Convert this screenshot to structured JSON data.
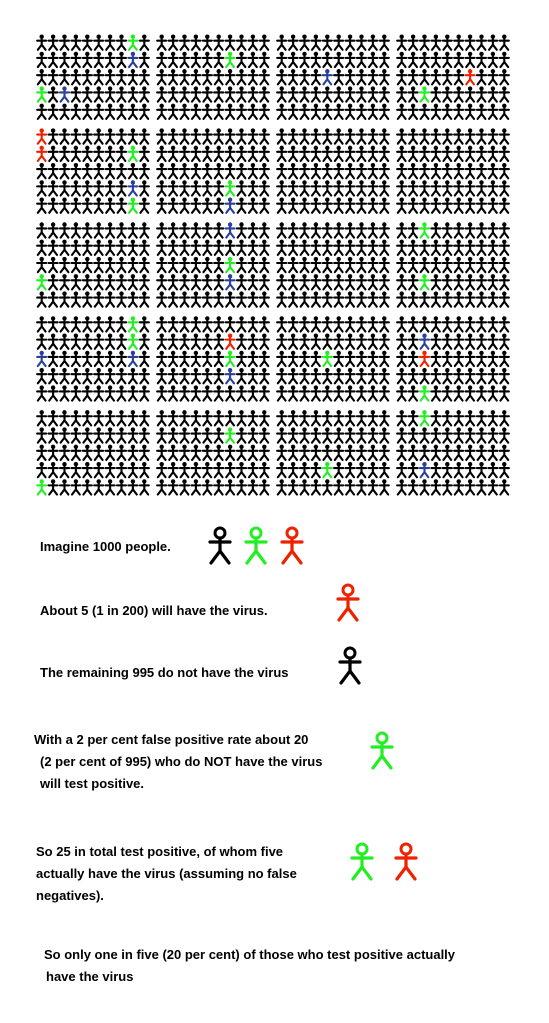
{
  "colors": {
    "healthy": "#000000",
    "false_positive": "#22ee22",
    "infected": "#ee2200",
    "highlight_blue": "#2a3f9a"
  },
  "grid": {
    "total_people": 1000,
    "infected_count": 5,
    "false_positive_count": 20
  },
  "captions": {
    "imagine": "Imagine 1000 people.",
    "have_virus": "About 5 (1 in 200) will have the virus.",
    "remaining": "The remaining 995 do not have the virus",
    "false_positive_1": "With a 2 per cent false positive rate about 20",
    "false_positive_2": "(2 per cent of 995) who do NOT have the virus",
    "false_positive_3": "will test positive.",
    "total_1": "So 25 in total test positive, of whom five",
    "total_2": "actually have the virus (assuming no false",
    "total_3": "negatives).",
    "conclusion_1": "So only one in five (20 per cent) of those who test positive actually",
    "conclusion_2": "have the virus"
  }
}
